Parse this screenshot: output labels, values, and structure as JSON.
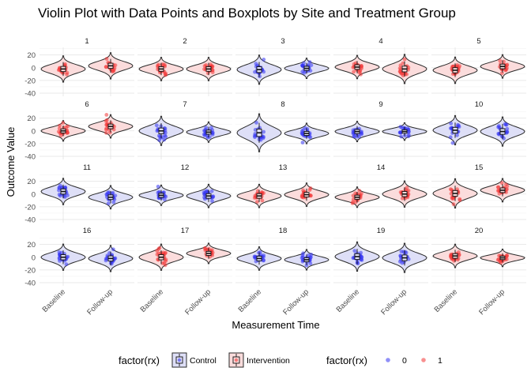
{
  "chart_data": {
    "type": "violin",
    "title": "Violin Plot with Data Points and Boxplots by Site and Treatment Group",
    "xlabel": "Measurement Time",
    "ylabel": "Outcome Value",
    "categories": [
      "Baseline",
      "Follow-up"
    ],
    "y_ticks": [
      20,
      0,
      -20,
      -40
    ],
    "ylim": [
      -45,
      32
    ],
    "grid": true,
    "colors": {
      "control_fill": "#dedff7",
      "intervention_fill": "#fbdcdc",
      "control_point": "#3535f2",
      "intervention_point": "#f23535",
      "outline": "#2a2a2a"
    },
    "panels": [
      {
        "label": "1",
        "rx": "Intervention",
        "baseline": {
          "median": -2,
          "spread": 9
        },
        "followup": {
          "median": 3,
          "spread": 9
        }
      },
      {
        "label": "2",
        "rx": "Intervention",
        "baseline": {
          "median": -2,
          "spread": 8
        },
        "followup": {
          "median": -2,
          "spread": 8
        }
      },
      {
        "label": "3",
        "rx": "Control",
        "baseline": {
          "median": -3,
          "spread": 10
        },
        "followup": {
          "median": -1,
          "spread": 7
        }
      },
      {
        "label": "4",
        "rx": "Intervention",
        "baseline": {
          "median": 1,
          "spread": 8
        },
        "followup": {
          "median": -2,
          "spread": 10
        }
      },
      {
        "label": "5",
        "rx": "Intervention",
        "baseline": {
          "median": -4,
          "spread": 9
        },
        "followup": {
          "median": 2,
          "spread": 8
        }
      },
      {
        "label": "6",
        "rx": "Intervention",
        "baseline": {
          "median": 0,
          "spread": 7
        },
        "followup": {
          "median": 7,
          "spread": 8
        }
      },
      {
        "label": "7",
        "rx": "Control",
        "baseline": {
          "median": 0,
          "spread": 10
        },
        "followup": {
          "median": -2,
          "spread": 7
        }
      },
      {
        "label": "8",
        "rx": "Control",
        "baseline": {
          "median": -3,
          "spread": 13
        },
        "followup": {
          "median": -4,
          "spread": 7
        }
      },
      {
        "label": "9",
        "rx": "Control",
        "baseline": {
          "median": -1,
          "spread": 7
        },
        "followup": {
          "median": -1,
          "spread": 6
        }
      },
      {
        "label": "10",
        "rx": "Control",
        "baseline": {
          "median": 1,
          "spread": 10
        },
        "followup": {
          "median": -1,
          "spread": 10
        }
      },
      {
        "label": "11",
        "rx": "Control",
        "baseline": {
          "median": 4,
          "spread": 9
        },
        "followup": {
          "median": -5,
          "spread": 8
        }
      },
      {
        "label": "12",
        "rx": "Control",
        "baseline": {
          "median": -2,
          "spread": 7
        },
        "followup": {
          "median": -3,
          "spread": 8
        }
      },
      {
        "label": "13",
        "rx": "Intervention",
        "baseline": {
          "median": -3,
          "spread": 8
        },
        "followup": {
          "median": -1,
          "spread": 8
        }
      },
      {
        "label": "14",
        "rx": "Intervention",
        "baseline": {
          "median": -5,
          "spread": 7
        },
        "followup": {
          "median": 0,
          "spread": 9
        }
      },
      {
        "label": "15",
        "rx": "Intervention",
        "baseline": {
          "median": 1,
          "spread": 10
        },
        "followup": {
          "median": 6,
          "spread": 8
        }
      },
      {
        "label": "16",
        "rx": "Control",
        "baseline": {
          "median": 0,
          "spread": 9
        },
        "followup": {
          "median": -2,
          "spread": 9
        }
      },
      {
        "label": "17",
        "rx": "Intervention",
        "baseline": {
          "median": 0,
          "spread": 9
        },
        "followup": {
          "median": 6,
          "spread": 7
        }
      },
      {
        "label": "18",
        "rx": "Control",
        "baseline": {
          "median": -2,
          "spread": 8
        },
        "followup": {
          "median": -4,
          "spread": 7
        }
      },
      {
        "label": "19",
        "rx": "Control",
        "baseline": {
          "median": 1,
          "spread": 10
        },
        "followup": {
          "median": -1,
          "spread": 10
        }
      },
      {
        "label": "20",
        "rx": "Intervention",
        "baseline": {
          "median": 2,
          "spread": 8
        },
        "followup": {
          "median": -1,
          "spread": 6
        }
      }
    ],
    "legend": {
      "placement": "bottom",
      "fill_title": "factor(rx)",
      "fill_items": [
        "Control",
        "Intervention"
      ],
      "color_title": "factor(rx)",
      "color_items": [
        "0",
        "1"
      ]
    }
  }
}
